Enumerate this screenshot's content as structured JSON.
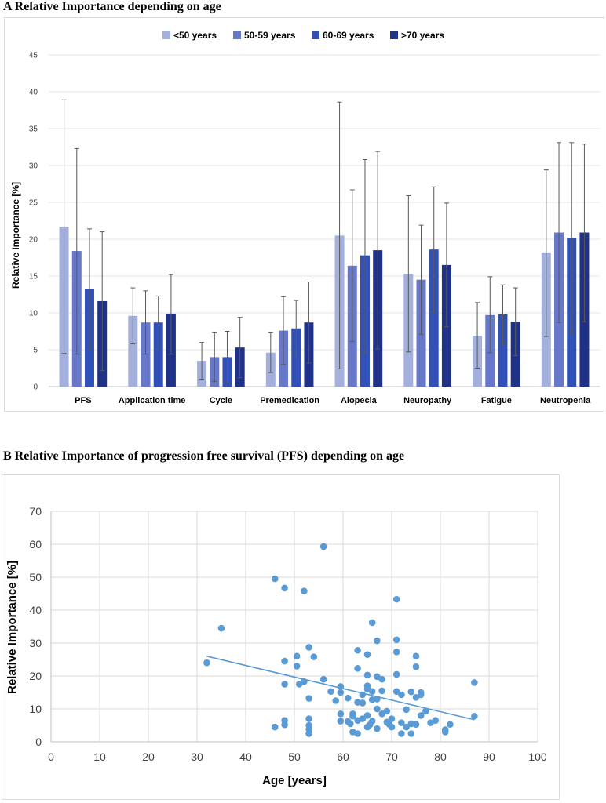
{
  "panel_a": {
    "heading": "A  Relative Importance depending on age",
    "chart_data": {
      "type": "bar",
      "title": "Relative Importance depending on age",
      "xlabel": "",
      "ylabel": "Relative Importance [%]",
      "ylim": [
        0,
        45
      ],
      "yticks": [
        0,
        5,
        10,
        15,
        20,
        25,
        30,
        35,
        40,
        45
      ],
      "categories": [
        "PFS",
        "Application time",
        "Cycle",
        "Premedication",
        "Alopecia",
        "Neuropathy",
        "Fatigue",
        "Neutropenia"
      ],
      "legend_position": "top",
      "series": [
        {
          "name": "<50 years",
          "color": "#a3b0dc",
          "values": [
            21.7,
            9.6,
            3.5,
            4.6,
            20.5,
            15.3,
            6.9,
            18.2
          ],
          "error_low": [
            4.5,
            5.8,
            1.0,
            1.9,
            2.4,
            4.7,
            2.5,
            6.8
          ],
          "error_high": [
            38.9,
            13.4,
            6.0,
            7.3,
            38.6,
            25.9,
            11.4,
            29.4
          ]
        },
        {
          "name": "50-59 years",
          "color": "#6878c8",
          "values": [
            18.4,
            8.7,
            4.0,
            7.6,
            16.4,
            14.5,
            9.7,
            20.9
          ],
          "error_low": [
            4.4,
            4.4,
            0.7,
            3.0,
            6.1,
            7.1,
            4.6,
            8.7
          ],
          "error_high": [
            32.3,
            13.0,
            7.3,
            12.2,
            26.7,
            21.9,
            14.9,
            33.1
          ]
        },
        {
          "name": "60-69 years",
          "color": "#3150b8",
          "values": [
            13.3,
            8.7,
            4.0,
            7.9,
            17.8,
            18.6,
            9.8,
            20.2
          ],
          "error_low": [
            5.2,
            5.1,
            0.5,
            4.0,
            4.7,
            10.1,
            5.8,
            7.3
          ],
          "error_high": [
            21.4,
            12.3,
            7.5,
            11.7,
            30.8,
            27.1,
            13.8,
            33.1
          ]
        },
        {
          "name": ">70 years",
          "color": "#1f3288",
          "values": [
            11.6,
            9.9,
            5.3,
            8.7,
            18.5,
            16.5,
            8.8,
            20.9
          ],
          "error_low": [
            2.2,
            4.4,
            1.2,
            3.2,
            5.1,
            8.1,
            4.2,
            8.8
          ],
          "error_high": [
            21.0,
            15.2,
            9.4,
            14.2,
            31.9,
            24.9,
            13.4,
            32.9
          ]
        }
      ]
    }
  },
  "panel_b": {
    "heading": "B  Relative Importance of progression free survival (PFS) depending on age",
    "chart_data": {
      "type": "scatter",
      "title": "Relative Importance of progression free survival (PFS) depending on age",
      "xlabel": "Age [years]",
      "ylabel": "Relative Importance [%]",
      "xlim": [
        0,
        100
      ],
      "ylim": [
        0,
        70
      ],
      "xticks": [
        0,
        10,
        20,
        30,
        40,
        50,
        60,
        70,
        80,
        90,
        100
      ],
      "yticks": [
        0,
        10,
        20,
        30,
        40,
        50,
        60,
        70
      ],
      "color": "#5b9bd5",
      "trendline": {
        "x": [
          32,
          87
        ],
        "y": [
          26,
          6.7
        ]
      },
      "points": [
        [
          32,
          24
        ],
        [
          35,
          34.5
        ],
        [
          46,
          49.5
        ],
        [
          46,
          4.5
        ],
        [
          48,
          46.7
        ],
        [
          48,
          24.5
        ],
        [
          48,
          17.5
        ],
        [
          48,
          6.5
        ],
        [
          48,
          5.2
        ],
        [
          50.5,
          26
        ],
        [
          50.5,
          23
        ],
        [
          51,
          17.5
        ],
        [
          52,
          45.8
        ],
        [
          52,
          18.3
        ],
        [
          53,
          28.7
        ],
        [
          53,
          13.2
        ],
        [
          53,
          7
        ],
        [
          53,
          5
        ],
        [
          53,
          3.8
        ],
        [
          53,
          2.5
        ],
        [
          54,
          25.8
        ],
        [
          56,
          59.3
        ],
        [
          56,
          19
        ],
        [
          57.5,
          15.3
        ],
        [
          58.5,
          12.5
        ],
        [
          59.5,
          16.8
        ],
        [
          59.5,
          15
        ],
        [
          59.5,
          8.5
        ],
        [
          59.5,
          6.3
        ],
        [
          61,
          13.3
        ],
        [
          61,
          6.2
        ],
        [
          61.5,
          5.5
        ],
        [
          62,
          8.5
        ],
        [
          62,
          7.8
        ],
        [
          62,
          3
        ],
        [
          63,
          27.8
        ],
        [
          63,
          22.3
        ],
        [
          63,
          12
        ],
        [
          63,
          6.5
        ],
        [
          63,
          2.5
        ],
        [
          64,
          14.3
        ],
        [
          64,
          11.8
        ],
        [
          64,
          7
        ],
        [
          65,
          26.5
        ],
        [
          65,
          20.3
        ],
        [
          65,
          17
        ],
        [
          65,
          16
        ],
        [
          65,
          8
        ],
        [
          65,
          4.5
        ],
        [
          65.5,
          5.2
        ],
        [
          66,
          36.2
        ],
        [
          66,
          15.3
        ],
        [
          66,
          12.8
        ],
        [
          66,
          6.3
        ],
        [
          67,
          30.7
        ],
        [
          67,
          19.8
        ],
        [
          67,
          13
        ],
        [
          67,
          10
        ],
        [
          67,
          4
        ],
        [
          68,
          19
        ],
        [
          68,
          15.5
        ],
        [
          68,
          8.5
        ],
        [
          69,
          9.3
        ],
        [
          69,
          6
        ],
        [
          69.5,
          5.3
        ],
        [
          70,
          7
        ],
        [
          70,
          4.5
        ],
        [
          71,
          43.3
        ],
        [
          71,
          31
        ],
        [
          71,
          27.3
        ],
        [
          71,
          20.5
        ],
        [
          71,
          15.3
        ],
        [
          72,
          14.3
        ],
        [
          72,
          5.8
        ],
        [
          72,
          2.5
        ],
        [
          73,
          9.8
        ],
        [
          73,
          4.5
        ],
        [
          74,
          15.2
        ],
        [
          74,
          5.5
        ],
        [
          74,
          2.5
        ],
        [
          75,
          26
        ],
        [
          75,
          22.8
        ],
        [
          75,
          13.5
        ],
        [
          75,
          5.3
        ],
        [
          76,
          15
        ],
        [
          76,
          14.3
        ],
        [
          76,
          8
        ],
        [
          77,
          9.3
        ],
        [
          78,
          5.8
        ],
        [
          79,
          6.5
        ],
        [
          81,
          3.7
        ],
        [
          81,
          3
        ],
        [
          82,
          5.3
        ],
        [
          87,
          18
        ],
        [
          87,
          7.8
        ]
      ]
    }
  }
}
